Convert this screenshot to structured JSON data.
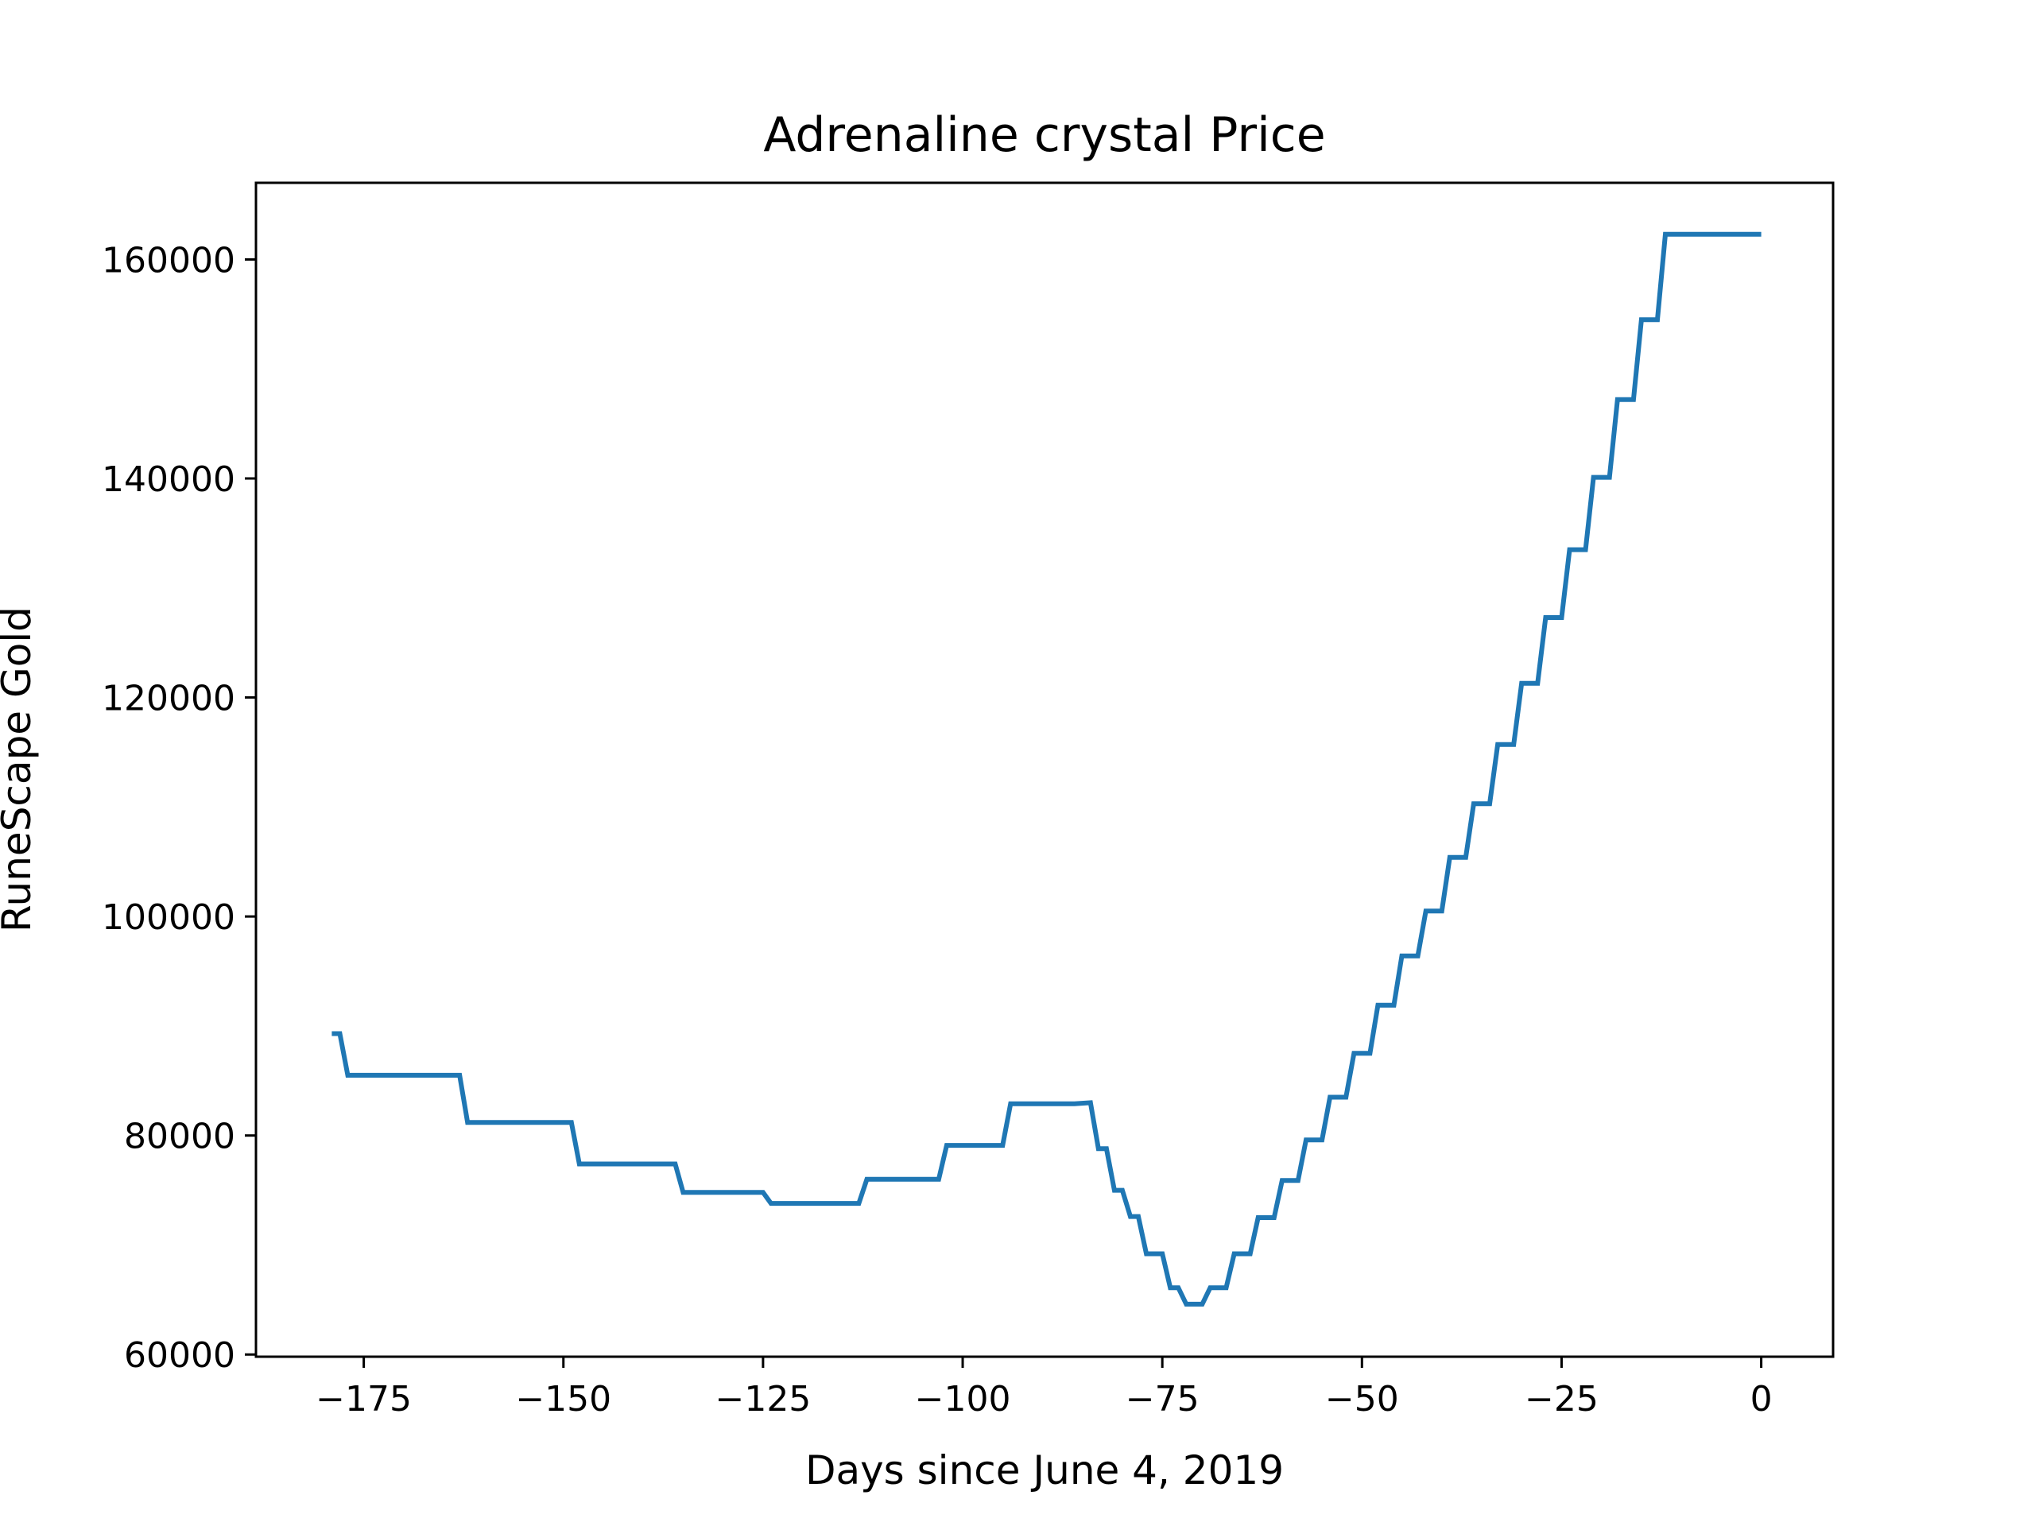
{
  "chart_data": {
    "type": "line",
    "title": "Adrenaline crystal Price",
    "xlabel": "Days since June 4, 2019",
    "ylabel": "RuneScape Gold",
    "xlim": [
      -188.5,
      9
    ],
    "ylim": [
      59800,
      167000
    ],
    "x_ticks": [
      -175,
      -150,
      -125,
      -100,
      -75,
      -50,
      -25,
      0
    ],
    "x_tick_labels": [
      "−175",
      "−150",
      "−125",
      "−100",
      "−75",
      "−50",
      "−25",
      "0"
    ],
    "y_ticks": [
      60000,
      80000,
      100000,
      120000,
      140000,
      160000
    ],
    "y_tick_labels": [
      "60000",
      "80000",
      "100000",
      "120000",
      "140000",
      "160000"
    ],
    "grid": false,
    "line_color": "#1f77b4",
    "series": [
      {
        "x": [
          -179,
          -178,
          -177,
          -176,
          -163,
          -162,
          -149,
          -148,
          -136,
          -135,
          -125,
          -124,
          -113,
          -112,
          -103,
          -102,
          -95,
          -94,
          -87,
          -86,
          -84,
          -83,
          -82,
          -81,
          -80,
          -79,
          -78,
          -77,
          -76,
          -75,
          -74,
          -73,
          -72,
          -71,
          -70,
          -69,
          -68,
          -67,
          -66,
          -65,
          -64,
          -63,
          -62,
          -61,
          -60,
          -59,
          -58,
          -57,
          -56,
          -55,
          -54,
          -53,
          -52,
          -51,
          -50,
          -49,
          -48,
          -47,
          -46,
          -45,
          -44,
          -43,
          -42,
          -41,
          -40,
          -39,
          -38,
          -37,
          -36,
          -35,
          -34,
          -33,
          -32,
          -31,
          -30,
          -29,
          -28,
          -27,
          -26,
          -25,
          -24,
          -23,
          -22,
          -21,
          -20,
          -19,
          -18,
          -17,
          -16,
          -15,
          -14,
          -13,
          -12,
          -11,
          -10,
          -9,
          -8,
          -7,
          -6,
          -5,
          -4,
          -3,
          -2,
          -1,
          0
        ],
        "y": [
          89300,
          89300,
          85500,
          85500,
          85500,
          81200,
          81200,
          77400,
          77400,
          74800,
          74800,
          73800,
          73800,
          76000,
          76000,
          79100,
          79100,
          82900,
          82900,
          82900,
          83000,
          78800,
          78800,
          75000,
          75000,
          72600,
          72600,
          69200,
          69200,
          69200,
          66100,
          66100,
          64600,
          64600,
          64600,
          66100,
          66100,
          66100,
          69200,
          69200,
          69200,
          72500,
          72500,
          72500,
          75900,
          75900,
          75900,
          79600,
          79600,
          79600,
          83500,
          83500,
          83500,
          87500,
          87500,
          87500,
          91900,
          91900,
          91900,
          96400,
          96400,
          96400,
          100500,
          100500,
          100500,
          105400,
          105400,
          105400,
          110300,
          110300,
          110300,
          115700,
          115700,
          115700,
          121300,
          121300,
          121300,
          127300,
          127300,
          127300,
          133500,
          133500,
          133500,
          140100,
          140100,
          140100,
          147200,
          147200,
          147200,
          154500,
          154500,
          154500,
          162300,
          162300,
          162300,
          162300,
          162300,
          162300,
          162300,
          162300,
          162300,
          162300,
          162300,
          162300,
          162300
        ]
      }
    ]
  }
}
